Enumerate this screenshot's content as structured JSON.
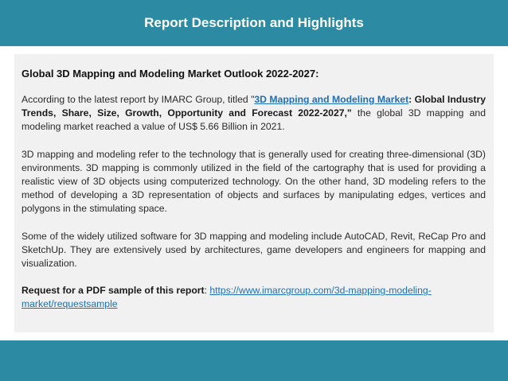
{
  "header": {
    "title": "Report Description and Highlights"
  },
  "card": {
    "heading": "Global 3D Mapping and Modeling Market Outlook 2022-2027:",
    "p1": {
      "intro": "According to the latest report by IMARC Group, titled \"",
      "link": "3D Mapping and Modeling Market",
      "bold_rest": ": Global Industry Trends, Share, Size, Growth, Opportunity and Forecast 2022-2027,\"",
      "rest": " the global 3D mapping and modeling market reached a value of US$ 5.66 Billion in 2021."
    },
    "p2": "3D mapping and modeling refer to the technology that is generally used for creating three-dimensional (3D) environments. 3D mapping is commonly utilized in the field of the cartography that is used for providing a realistic view of 3D objects using computerized technology. On the other hand, 3D modeling refers to the method of developing a 3D representation of objects and surfaces by manipulating edges, vertices and polygons in the stimulating space.",
    "p3": "Some of the widely utilized software for 3D mapping and modeling include AutoCAD, Revit, ReCap Pro and SketchUp. They are extensively used by architectures, game developers and engineers for mapping and visualization.",
    "request": {
      "label": "Request for a PDF sample of this report",
      "colon": ": ",
      "url": "https://www.imarcgroup.com/3d-mapping-modeling-market/requestsample"
    }
  }
}
